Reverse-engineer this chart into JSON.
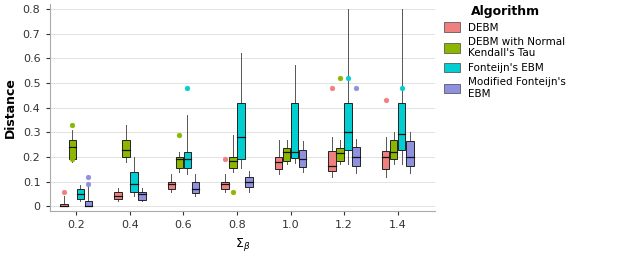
{
  "x_labels": [
    "0.2",
    "0.4",
    "0.6",
    "0.8",
    "1.0",
    "1.2",
    "1.4"
  ],
  "x_positions": [
    0.2,
    0.4,
    0.6,
    0.8,
    1.0,
    1.2,
    1.4
  ],
  "colors": [
    "#F08080",
    "#8DB600",
    "#00CED1",
    "#9090E0"
  ],
  "offsets": [
    -0.045,
    -0.015,
    0.015,
    0.045
  ],
  "box_width": 0.028,
  "ylabel": "Distance",
  "xlabel": "$\\Sigma_{\\beta}$",
  "ylim": [
    -0.02,
    0.82
  ],
  "yticks": [
    0.0,
    0.1,
    0.2,
    0.3,
    0.4,
    0.5,
    0.6,
    0.7,
    0.8
  ],
  "ytick_labels": [
    "0",
    "0.1",
    "0.2",
    "0.3",
    "0.4",
    "0.5",
    "0.6",
    "0.7",
    "0.8"
  ],
  "legend_title": "Algorithm",
  "legend_labels": [
    "DEBM",
    "DEBM with Normal\nKendall's Tau",
    "Fonteijn's EBM",
    "Modified Fonteijn's\nEBM"
  ],
  "box_data": {
    "DEBM": [
      {
        "whislo": 0.0,
        "q1": 0.0,
        "med": 0.0,
        "q3": 0.01,
        "whishi": 0.04,
        "fliers": [
          0.06
        ]
      },
      {
        "whislo": 0.02,
        "q1": 0.03,
        "med": 0.04,
        "q3": 0.06,
        "whishi": 0.075,
        "fliers": []
      },
      {
        "whislo": 0.06,
        "q1": 0.07,
        "med": 0.09,
        "q3": 0.1,
        "whishi": 0.13,
        "fliers": []
      },
      {
        "whislo": 0.06,
        "q1": 0.07,
        "med": 0.09,
        "q3": 0.1,
        "whishi": 0.13,
        "fliers": [
          0.19
        ]
      },
      {
        "whislo": 0.13,
        "q1": 0.15,
        "med": 0.18,
        "q3": 0.2,
        "whishi": 0.27,
        "fliers": []
      },
      {
        "whislo": 0.12,
        "q1": 0.145,
        "med": 0.165,
        "q3": 0.225,
        "whishi": 0.28,
        "fliers": [
          0.48
        ]
      },
      {
        "whislo": 0.12,
        "q1": 0.15,
        "med": 0.2,
        "q3": 0.225,
        "whishi": 0.28,
        "fliers": [
          0.43
        ]
      }
    ],
    "DEBM_Normal": [
      {
        "whislo": 0.18,
        "q1": 0.19,
        "med": 0.24,
        "q3": 0.27,
        "whishi": 0.31,
        "fliers": [
          0.33,
          0.23,
          0.19
        ]
      },
      {
        "whislo": 0.18,
        "q1": 0.2,
        "med": 0.23,
        "q3": 0.27,
        "whishi": 0.33,
        "fliers": []
      },
      {
        "whislo": 0.14,
        "q1": 0.155,
        "med": 0.19,
        "q3": 0.2,
        "whishi": 0.22,
        "fliers": [
          0.29
        ]
      },
      {
        "whislo": 0.14,
        "q1": 0.155,
        "med": 0.185,
        "q3": 0.2,
        "whishi": 0.29,
        "fliers": [
          0.06
        ]
      },
      {
        "whislo": 0.17,
        "q1": 0.185,
        "med": 0.22,
        "q3": 0.235,
        "whishi": 0.27,
        "fliers": []
      },
      {
        "whislo": 0.17,
        "q1": 0.185,
        "med": 0.215,
        "q3": 0.235,
        "whishi": 0.27,
        "fliers": [
          0.52
        ]
      },
      {
        "whislo": 0.17,
        "q1": 0.19,
        "med": 0.22,
        "q3": 0.27,
        "whishi": 0.3,
        "fliers": []
      }
    ],
    "Fonteijn": [
      {
        "whislo": 0.02,
        "q1": 0.03,
        "med": 0.05,
        "q3": 0.07,
        "whishi": 0.085,
        "fliers": []
      },
      {
        "whislo": 0.04,
        "q1": 0.06,
        "med": 0.09,
        "q3": 0.14,
        "whishi": 0.2,
        "fliers": []
      },
      {
        "whislo": 0.13,
        "q1": 0.155,
        "med": 0.19,
        "q3": 0.22,
        "whishi": 0.37,
        "fliers": [
          0.48
        ]
      },
      {
        "whislo": 0.155,
        "q1": 0.19,
        "med": 0.28,
        "q3": 0.42,
        "whishi": 0.62,
        "fliers": []
      },
      {
        "whislo": 0.175,
        "q1": 0.195,
        "med": 0.22,
        "q3": 0.42,
        "whishi": 0.575,
        "fliers": []
      },
      {
        "whislo": 0.17,
        "q1": 0.23,
        "med": 0.3,
        "q3": 0.42,
        "whishi": 0.8,
        "fliers": [
          0.52
        ]
      },
      {
        "whislo": 0.17,
        "q1": 0.23,
        "med": 0.295,
        "q3": 0.42,
        "whishi": 0.8,
        "fliers": [
          0.48
        ]
      }
    ],
    "ModFonteijn": [
      {
        "whislo": 0.0,
        "q1": 0.0,
        "med": 0.0,
        "q3": 0.02,
        "whishi": 0.085,
        "fliers": [
          0.12,
          0.09
        ]
      },
      {
        "whislo": 0.02,
        "q1": 0.025,
        "med": 0.05,
        "q3": 0.06,
        "whishi": 0.075,
        "fliers": []
      },
      {
        "whislo": 0.04,
        "q1": 0.055,
        "med": 0.07,
        "q3": 0.1,
        "whishi": 0.13,
        "fliers": []
      },
      {
        "whislo": 0.06,
        "q1": 0.08,
        "med": 0.1,
        "q3": 0.12,
        "whishi": 0.145,
        "fliers": []
      },
      {
        "whislo": 0.14,
        "q1": 0.16,
        "med": 0.19,
        "q3": 0.23,
        "whishi": 0.265,
        "fliers": []
      },
      {
        "whislo": 0.135,
        "q1": 0.165,
        "med": 0.2,
        "q3": 0.24,
        "whishi": 0.275,
        "fliers": [
          0.48
        ]
      },
      {
        "whislo": 0.135,
        "q1": 0.165,
        "med": 0.2,
        "q3": 0.265,
        "whishi": 0.3,
        "fliers": []
      }
    ]
  }
}
